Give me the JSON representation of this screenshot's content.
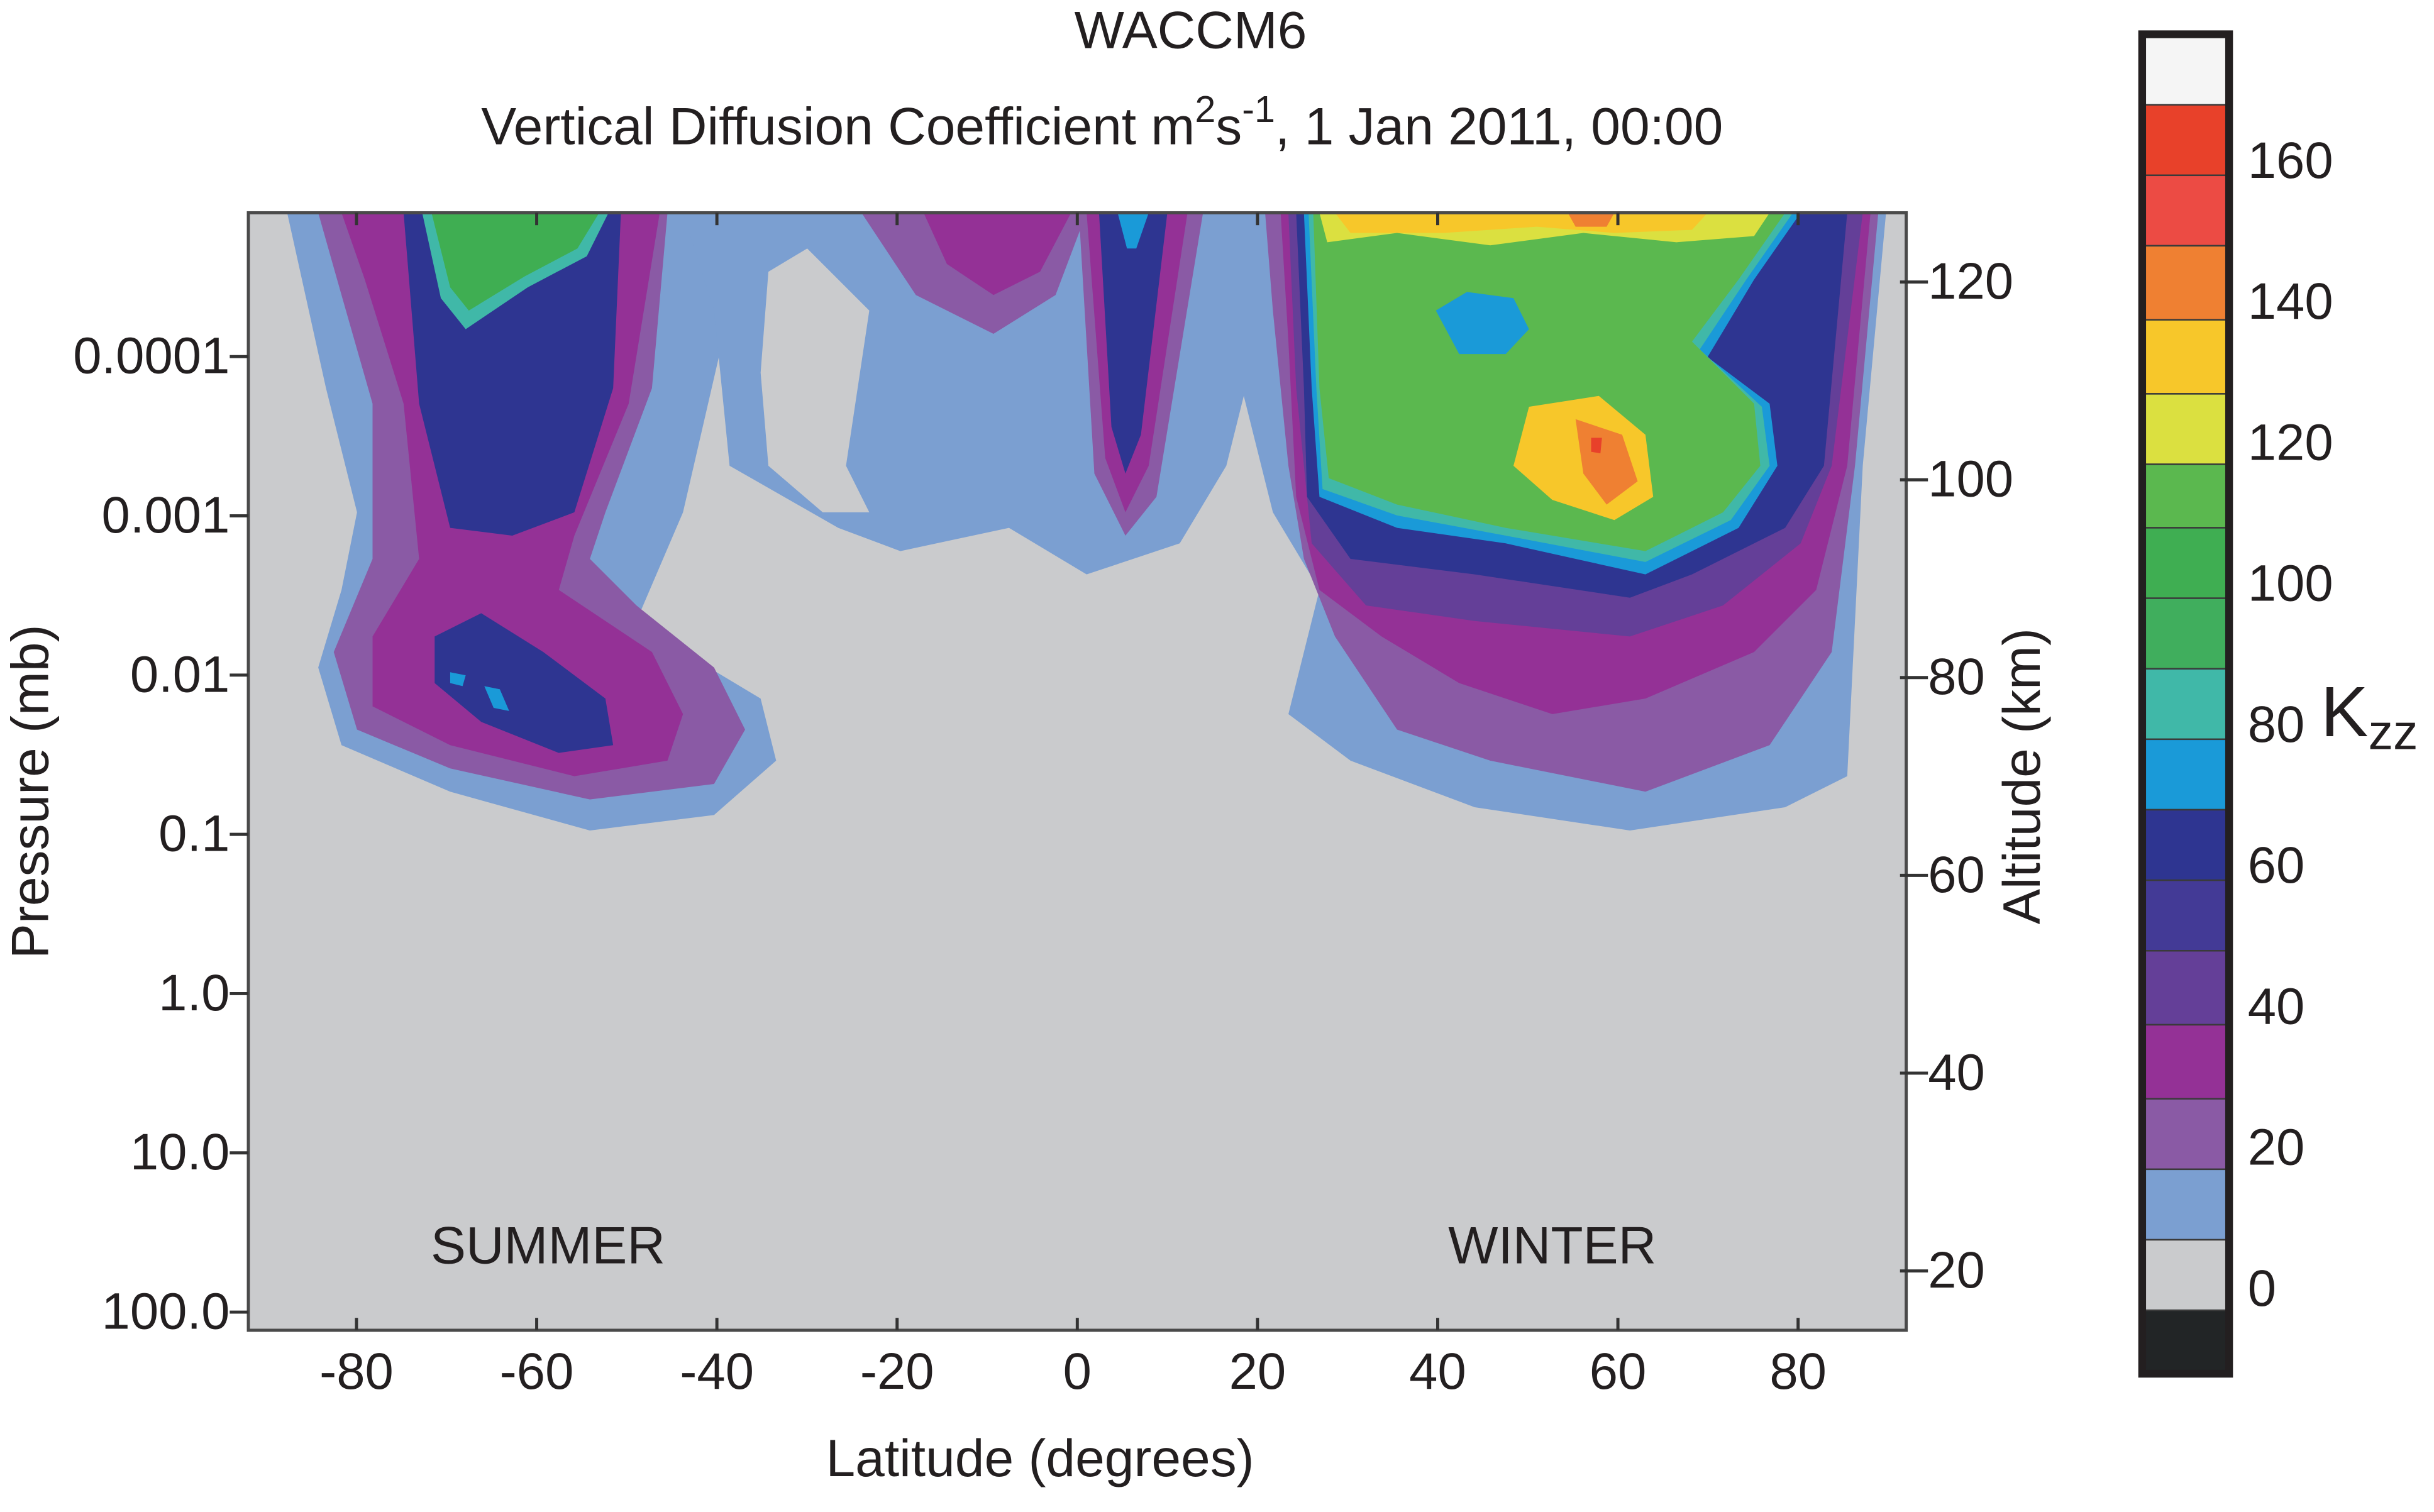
{
  "chart_data": {
    "type": "contour",
    "title": "WACCM6",
    "subtitle": [
      "Vertical Diffusion Coefficient m",
      "2",
      "s",
      "-1",
      ", 1 Jan 2011, 00:00"
    ],
    "xlabel": "Latitude (degrees)",
    "ylabel": "Pressure (mb)",
    "y2label": "Altitude (km)",
    "xlim": [
      -92,
      92
    ],
    "xticks": [
      -80,
      -60,
      -40,
      -20,
      0,
      20,
      40,
      60,
      80
    ],
    "ylim": [
      130,
      1.25e-05
    ],
    "ylog": true,
    "yticks": [
      0.0001,
      0.001,
      0.01,
      0.1,
      {
        "value": 1,
        "label": "1.0"
      },
      {
        "value": 10,
        "label": "10.0"
      },
      {
        "value": 100,
        "label": "100.0"
      }
    ],
    "y2lim": [
      14,
      127
    ],
    "y2ticks": [
      20,
      40,
      60,
      80,
      100,
      120
    ],
    "annotations": [
      "SUMMER",
      "WINTER"
    ],
    "colorbar": {
      "label": "K",
      "label_subscript": "zz",
      "boundaries": [
        178,
        168,
        158,
        148,
        137.5,
        127,
        117,
        108,
        98,
        88,
        78,
        68,
        58,
        48,
        37.5,
        27,
        17,
        7,
        -3,
        -12
      ],
      "colors": [
        "#f5f5f5",
        "#e8412a",
        "#ec4b44",
        "#ef8032",
        "#f7c72a",
        "#dbe040",
        "#5bb84f",
        "#3fae52",
        "#40ae5d",
        "#40b8a8",
        "#1a9ad8",
        "#2e3591",
        "#433a96",
        "#643f98",
        "#943196",
        "#8a5aa5",
        "#7b9fd1",
        "#cacbcd",
        "#222526"
      ],
      "ticks": [
        0,
        20,
        40,
        60,
        80,
        100,
        120,
        140,
        160
      ]
    }
  }
}
